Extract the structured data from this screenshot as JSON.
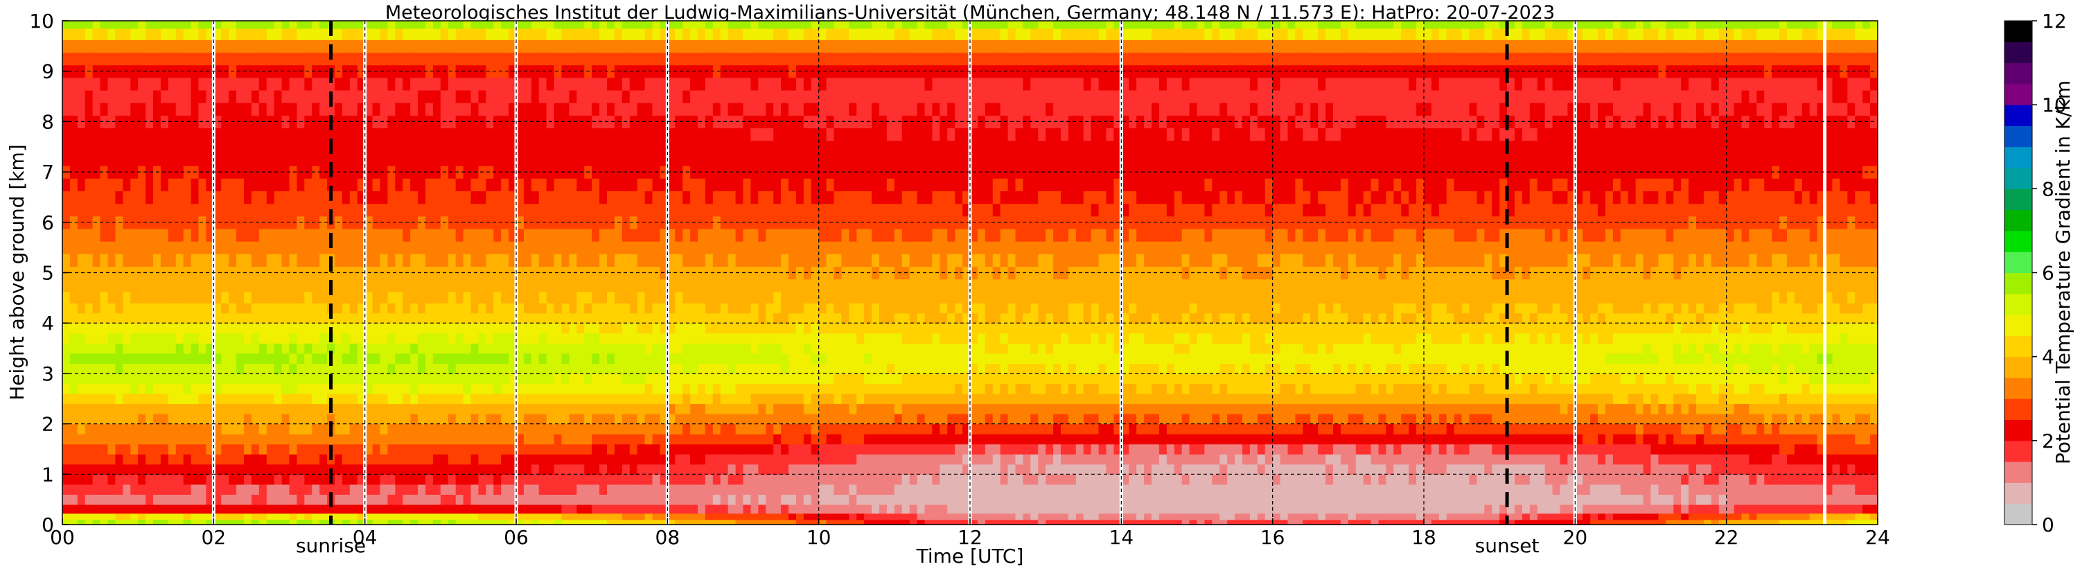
{
  "chart_data": {
    "type": "heatmap",
    "title": "Meteorologisches Institut der Ludwig-Maximilians-Universität (München, Germany; 48.148 N / 11.573 E):    HatPro: 20-07-2023",
    "xlabel": "Time [UTC]",
    "ylabel": "Height above ground [km]",
    "xlim": [
      0,
      24
    ],
    "ylim": [
      0,
      10
    ],
    "x_ticks": [
      "00",
      "02",
      "04",
      "06",
      "08",
      "10",
      "12",
      "14",
      "16",
      "18",
      "20",
      "22",
      "24"
    ],
    "y_ticks": [
      "0",
      "1",
      "2",
      "3",
      "4",
      "5",
      "6",
      "7",
      "8",
      "9",
      "10"
    ],
    "grid": true,
    "colorbar": {
      "label": "Potential Temperature Gradient in K/km",
      "range": [
        0,
        12
      ],
      "ticks": [
        "0",
        "2",
        "4",
        "6",
        "8",
        "10",
        "12"
      ],
      "colors": [
        "#c8c8c8",
        "#e3b4b4",
        "#f08080",
        "#ff3030",
        "#ee0000",
        "#ff4000",
        "#ff8000",
        "#ffb000",
        "#ffd200",
        "#f0f000",
        "#d2f500",
        "#a0f000",
        "#50f050",
        "#00e000",
        "#00b400",
        "#00a050",
        "#00a0a0",
        "#0096c8",
        "#0050c8",
        "#0000c8",
        "#800080",
        "#600070",
        "#300050",
        "#000000"
      ]
    },
    "markers": [
      {
        "label": "sunrise",
        "time": 3.55
      },
      {
        "label": "sunset",
        "time": 19.1
      }
    ],
    "data_gaps_utc": [
      2.0,
      4.0,
      6.0,
      8.0,
      12.0,
      14.0,
      20.0,
      23.3
    ],
    "profile_km": [
      0.05,
      0.15,
      0.3,
      0.5,
      0.7,
      0.9,
      1.1,
      1.3,
      1.5,
      1.7,
      1.9,
      2.1,
      2.3,
      2.5,
      2.7,
      2.9,
      3.1,
      3.3,
      3.5,
      3.7,
      3.9,
      4.1,
      4.3,
      4.5,
      4.75,
      5.0,
      5.25,
      5.5,
      5.75,
      6.0,
      6.25,
      6.5,
      6.75,
      7.0,
      7.25,
      7.5,
      7.75,
      8.0,
      8.25,
      8.5,
      8.75,
      9.0,
      9.25,
      9.5,
      9.75,
      9.95
    ],
    "night_profile": [
      5.5,
      4.6,
      2.3,
      1.4,
      1.6,
      2.0,
      2.3,
      2.6,
      2.9,
      3.2,
      3.4,
      3.6,
      3.8,
      4.4,
      4.9,
      5.2,
      5.4,
      5.6,
      5.4,
      5.0,
      4.7,
      4.3,
      4.1,
      3.9,
      3.8,
      3.7,
      3.5,
      3.3,
      3.1,
      2.9,
      2.8,
      2.6,
      2.5,
      2.4,
      2.3,
      2.2,
      2.2,
      2.1,
      2.0,
      1.9,
      1.9,
      2.4,
      2.8,
      3.2,
      4.5,
      5.6
    ],
    "day_profile": [
      1.6,
      1.1,
      0.8,
      0.7,
      0.8,
      0.9,
      0.9,
      1.1,
      1.5,
      2.2,
      2.6,
      3.0,
      3.3,
      3.7,
      4.0,
      4.3,
      4.5,
      4.7,
      4.6,
      4.4,
      4.2,
      4.0,
      3.9,
      3.8,
      3.7,
      3.6,
      3.4,
      3.2,
      3.0,
      2.8,
      2.6,
      2.5,
      2.4,
      2.3,
      2.3,
      2.2,
      2.1,
      2.0,
      1.9,
      1.8,
      1.9,
      2.3,
      2.8,
      3.2,
      4.5,
      5.6
    ]
  }
}
